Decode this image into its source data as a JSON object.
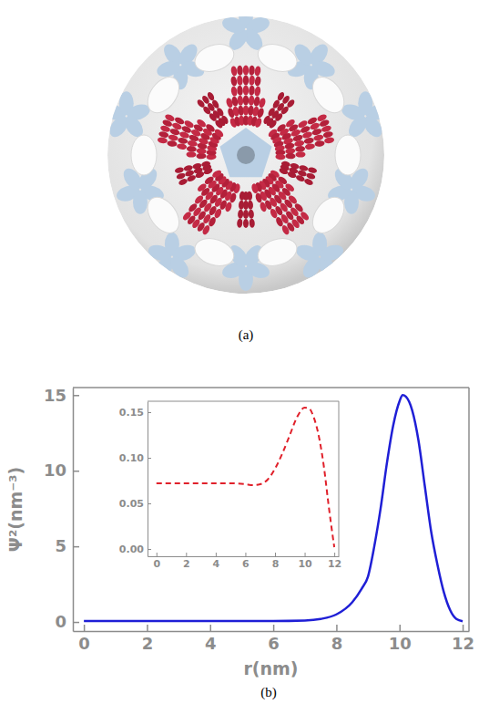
{
  "figure": {
    "captions": [
      "(a)",
      "(b)"
    ]
  },
  "chart_data": [
    {
      "type": "line",
      "x_label": "r(nm)",
      "y_label": "Ψ²(nm⁻³)",
      "x": [
        0,
        1,
        2,
        3,
        4,
        5,
        6,
        7,
        7.5,
        8,
        8.5,
        8.8,
        9,
        9.2,
        9.4,
        9.6,
        9.8,
        10,
        10.1,
        10.2,
        10.4,
        10.6,
        10.8,
        11,
        11.2,
        11.4,
        11.6,
        11.8,
        12
      ],
      "values": [
        0.07,
        0.07,
        0.07,
        0.07,
        0.07,
        0.07,
        0.07,
        0.1,
        0.2,
        0.5,
        1.3,
        2.2,
        3,
        5,
        7.5,
        10.5,
        13,
        14.6,
        15,
        14.9,
        14,
        12,
        9,
        6,
        3.8,
        2,
        0.8,
        0.2,
        0.05
      ],
      "color": "#1f1fd6",
      "line_style": "solid",
      "xlim": [
        -0.35,
        12.2
      ],
      "xticks": [
        0,
        2,
        4,
        6,
        8,
        10,
        12
      ],
      "ylim": [
        -0.6,
        15.5
      ],
      "yticks": [
        0,
        5,
        10,
        15
      ]
    },
    {
      "type": "line",
      "x": [
        0,
        1,
        2,
        3,
        4,
        5,
        6,
        6.5,
        7,
        7.5,
        8,
        8.5,
        9,
        9.5,
        10,
        10.3,
        10.6,
        11,
        11.3,
        11.6,
        11.8,
        12
      ],
      "values": [
        0.072,
        0.072,
        0.072,
        0.072,
        0.072,
        0.072,
        0.071,
        0.07,
        0.071,
        0.076,
        0.088,
        0.105,
        0.125,
        0.145,
        0.155,
        0.154,
        0.145,
        0.12,
        0.09,
        0.05,
        0.025,
        0.002
      ],
      "color": "#e0202a",
      "line_style": "dashed",
      "xlim": [
        -0.6,
        12.3
      ],
      "xticks": [
        0,
        2,
        4,
        6,
        8,
        10,
        12
      ],
      "ylim": [
        -0.008,
        0.162
      ],
      "yticks": [
        {
          "value": 0,
          "label": "0.00"
        },
        0.05,
        {
          "value": 0.1,
          "label": "0.10"
        },
        0.15
      ]
    }
  ]
}
